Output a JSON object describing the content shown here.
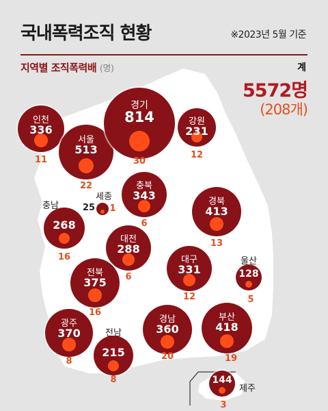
{
  "header": {
    "title": "국내폭력조직 현황",
    "date_note": "※2023년 5월 기준",
    "subtitle": "지역별 조직폭력배",
    "subtitle_unit": "(명)"
  },
  "total": {
    "label": "계",
    "members": "5572명",
    "groups": "(208개)"
  },
  "colors": {
    "bubble": "#881217",
    "inner": "#ff4d1a",
    "count_text": "#e0501e",
    "accent": "#b01b1e"
  },
  "regions": [
    {
      "id": "incheon",
      "name": "인천",
      "members": "336",
      "groups": "11"
    },
    {
      "id": "seoul",
      "name": "서울",
      "members": "513",
      "groups": "22"
    },
    {
      "id": "gyeonggi",
      "name": "경기",
      "members": "814",
      "groups": "30"
    },
    {
      "id": "gangwon",
      "name": "강원",
      "members": "231",
      "groups": "12"
    },
    {
      "id": "chungbuk",
      "name": "충북",
      "members": "343",
      "groups": "6"
    },
    {
      "id": "sejong",
      "name": "세종",
      "members": "25",
      "groups": "1"
    },
    {
      "id": "chungnam",
      "name": "충남",
      "members": "268",
      "groups": "16"
    },
    {
      "id": "gyeongbuk",
      "name": "경북",
      "members": "413",
      "groups": "13"
    },
    {
      "id": "daejeon",
      "name": "대전",
      "members": "288",
      "groups": "6"
    },
    {
      "id": "daegu",
      "name": "대구",
      "members": "331",
      "groups": "12"
    },
    {
      "id": "ulsan",
      "name": "울산",
      "members": "128",
      "groups": "5"
    },
    {
      "id": "jeonbuk",
      "name": "전북",
      "members": "375",
      "groups": "16"
    },
    {
      "id": "gwangju",
      "name": "광주",
      "members": "370",
      "groups": "8"
    },
    {
      "id": "jeonnam",
      "name": "전남",
      "members": "215",
      "groups": "8"
    },
    {
      "id": "gyeongnam",
      "name": "경남",
      "members": "360",
      "groups": "20"
    },
    {
      "id": "busan",
      "name": "부산",
      "members": "418",
      "groups": "19"
    },
    {
      "id": "jeju",
      "name": "제주",
      "members": "144",
      "groups": "3"
    }
  ]
}
